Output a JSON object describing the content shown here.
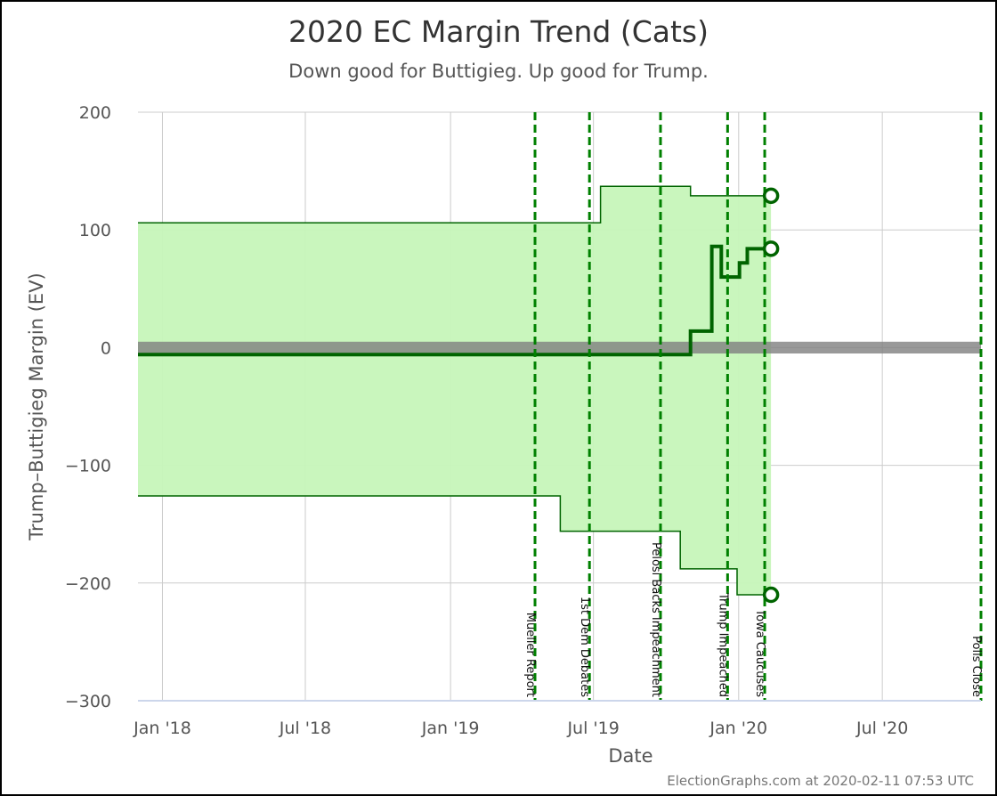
{
  "chart_data": {
    "type": "line",
    "title": "2020 EC Margin Trend (Cats)",
    "subtitle": "Down good for Buttigieg. Up good for Trump.",
    "xlabel": "Date",
    "ylabel": "Trump-Buttigieg Margin (EV)",
    "ylim": [
      -300,
      200
    ],
    "xlim": [
      "2017-12-01",
      "2020-11-03"
    ],
    "yticks": [
      200,
      100,
      0,
      -100,
      -200,
      -300
    ],
    "xticks": [
      {
        "date": "2018-01-01",
        "label": "Jan '18"
      },
      {
        "date": "2018-07-01",
        "label": "Jul '18"
      },
      {
        "date": "2019-01-01",
        "label": "Jan '19"
      },
      {
        "date": "2019-07-01",
        "label": "Jul '19"
      },
      {
        "date": "2020-01-01",
        "label": "Jan '20"
      },
      {
        "date": "2020-07-01",
        "label": "Jul '20"
      }
    ],
    "grid": true,
    "tie_band": [
      -5,
      5
    ],
    "colors": {
      "band_fill": "#c6f5b9",
      "line": "#006400",
      "event_line": "#008000",
      "tie_band": "#7f7f7f",
      "grid": "#cccccc"
    },
    "series": [
      {
        "role": "upper",
        "step": true,
        "points": [
          [
            "2017-12-01",
            106
          ],
          [
            "2019-07-10",
            106
          ],
          [
            "2019-07-10",
            137
          ],
          [
            "2019-11-01",
            137
          ],
          [
            "2019-11-01",
            129
          ],
          [
            "2020-02-11",
            129
          ]
        ]
      },
      {
        "role": "expected",
        "step": true,
        "points": [
          [
            "2017-12-01",
            -6
          ],
          [
            "2019-11-01",
            -6
          ],
          [
            "2019-11-01",
            14
          ],
          [
            "2019-11-28",
            14
          ],
          [
            "2019-11-28",
            86
          ],
          [
            "2019-12-10",
            86
          ],
          [
            "2019-12-10",
            60
          ],
          [
            "2020-01-02",
            60
          ],
          [
            "2020-01-02",
            72
          ],
          [
            "2020-01-12",
            72
          ],
          [
            "2020-01-12",
            84
          ],
          [
            "2020-02-11",
            84
          ]
        ]
      },
      {
        "role": "lower",
        "step": true,
        "points": [
          [
            "2017-12-01",
            -126
          ],
          [
            "2019-05-20",
            -126
          ],
          [
            "2019-05-20",
            -156
          ],
          [
            "2019-10-19",
            -156
          ],
          [
            "2019-10-19",
            -188
          ],
          [
            "2019-12-30",
            -188
          ],
          [
            "2019-12-30",
            -210
          ],
          [
            "2020-02-11",
            -210
          ]
        ]
      }
    ],
    "endpoints": [
      {
        "date": "2020-02-11",
        "value": 129
      },
      {
        "date": "2020-02-11",
        "value": 84
      },
      {
        "date": "2020-02-11",
        "value": -210
      }
    ],
    "events": [
      {
        "date": "2019-04-18",
        "label": "Mueller Report"
      },
      {
        "date": "2019-06-26",
        "label": "1st Dem Debates"
      },
      {
        "date": "2019-09-24",
        "label": "Pelosi Backs Impeachment"
      },
      {
        "date": "2019-12-18",
        "label": "Trump Impeached"
      },
      {
        "date": "2020-02-03",
        "label": "Iowa Caucuses"
      },
      {
        "date": "2020-11-03",
        "label": "Polls Close"
      }
    ]
  },
  "credit": "ElectionGraphs.com at 2020-02-11 07:53 UTC"
}
